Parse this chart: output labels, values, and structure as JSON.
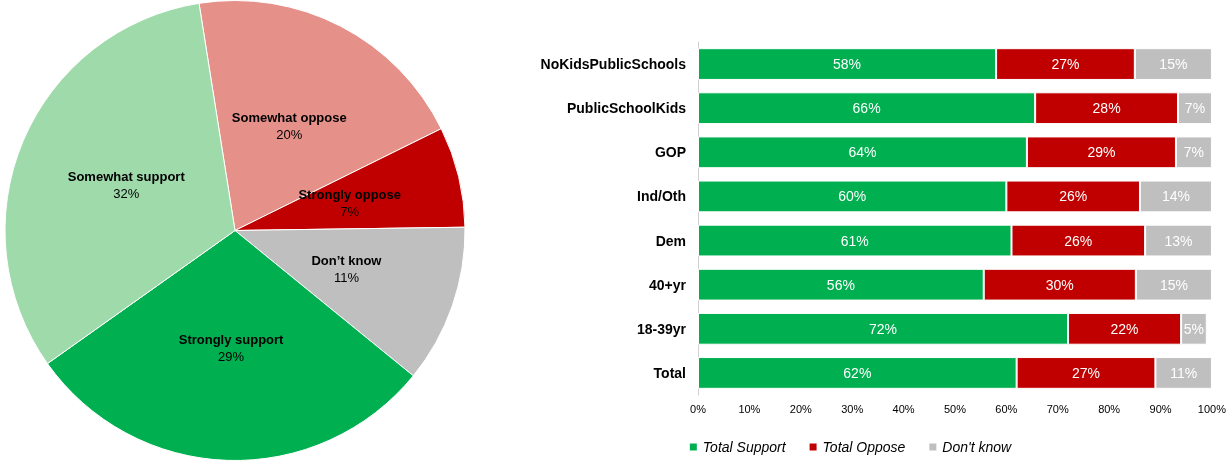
{
  "chart_data": [
    {
      "type": "pie",
      "categories": [
        "Somewhat oppose",
        "Strongly oppose",
        "Don’t know",
        "Strongly support",
        "Somewhat support"
      ],
      "values": [
        20,
        7,
        11,
        29,
        32
      ],
      "value_labels": [
        "20%",
        "7%",
        "11%",
        "29%",
        "32%"
      ],
      "colors": [
        "#e6908a",
        "#c00000",
        "#bfbfbf",
        "#00b050",
        "#9fdaab"
      ],
      "legend": false
    },
    {
      "type": "bar",
      "orientation": "horizontal",
      "stacked": true,
      "categories": [
        "NoKidsPublicSchools",
        "PublicSchoolKids",
        "GOP",
        "Ind/Oth",
        "Dem",
        "40+yr",
        "18-39yr",
        "Total"
      ],
      "series": [
        {
          "name": "Total Support",
          "color": "#00b050",
          "values": [
            58,
            65.6,
            64,
            60,
            61,
            55.6,
            72,
            62
          ],
          "value_labels": [
            "58%",
            "66%",
            "64%",
            "60%",
            "61%",
            "56%",
            "72%",
            "62%"
          ]
        },
        {
          "name": "Total Oppose",
          "color": "#c00000",
          "values": [
            27,
            27.8,
            29,
            26,
            26,
            29.6,
            22,
            27
          ],
          "value_labels": [
            "27%",
            "28%",
            "29%",
            "26%",
            "26%",
            "30%",
            "22%",
            "27%"
          ]
        },
        {
          "name": "Don't know",
          "color": "#bfbfbf",
          "values": [
            15,
            6.6,
            7,
            14,
            13,
            14.8,
            5,
            11
          ],
          "value_labels": [
            "15%",
            "7%",
            "7%",
            "14%",
            "13%",
            "15%",
            "5%",
            "11%"
          ]
        }
      ],
      "xlim": [
        0,
        100
      ],
      "xticks": [
        {
          "value": 0,
          "label": "0%"
        },
        {
          "value": 10,
          "label": "10%"
        },
        {
          "value": 20,
          "label": "20%"
        },
        {
          "value": 30,
          "label": "30%"
        },
        {
          "value": 40,
          "label": "40%"
        },
        {
          "value": 50,
          "label": "50%"
        },
        {
          "value": 60,
          "label": "60%"
        },
        {
          "value": 70,
          "label": "70%"
        },
        {
          "value": 80,
          "label": "80%"
        },
        {
          "value": 90,
          "label": "90%"
        },
        {
          "value": 100,
          "label": "100%"
        }
      ],
      "grid": false,
      "legend": "bottom"
    }
  ]
}
